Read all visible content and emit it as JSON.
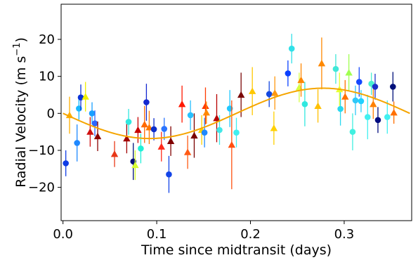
{
  "chart_data": {
    "type": "scatter",
    "title": "",
    "xlabel": "Time since midtransit (days)",
    "ylabel": "Radial Velocity (m s$^{-1}$)",
    "ylabel_main": "Radial Velocity (m s",
    "ylabel_sup": "−1",
    "ylabel_close": ")",
    "xlim": [
      -0.002,
      0.372
    ],
    "ylim": [
      -29,
      29.5
    ],
    "x_ticks": [
      0,
      0.1,
      0.2,
      0.3
    ],
    "x_tick_labels": [
      "0.0",
      "0.1",
      "0.2",
      "0.3"
    ],
    "y_ticks": [
      -20,
      -10,
      0,
      10,
      20
    ],
    "y_tick_labels": [
      "−20",
      "−10",
      "0",
      "10",
      "20"
    ],
    "grid": false,
    "legend": "none",
    "model_curve": {
      "type": "sinusoid",
      "amplitude": 6.8,
      "period": 0.37,
      "phase_zero_x": 0.0,
      "color": "#f5a500",
      "x_range": [
        0.0,
        0.37
      ]
    },
    "points": [
      {
        "x": 0.003,
        "y": -13.5,
        "err": 3.5,
        "marker": "circle",
        "color": "#0f3ce6"
      },
      {
        "x": 0.007,
        "y": -0.5,
        "err": 5.0,
        "marker": "triangle",
        "color": "#ffb000"
      },
      {
        "x": 0.015,
        "y": -8.0,
        "err": 5.0,
        "marker": "circle",
        "color": "#1e88ff"
      },
      {
        "x": 0.017,
        "y": 1.3,
        "err": 3.0,
        "marker": "circle",
        "color": "#18b8ff"
      },
      {
        "x": 0.019,
        "y": 4.3,
        "err": 3.5,
        "marker": "circle",
        "color": "#0a32d8"
      },
      {
        "x": 0.024,
        "y": 4.5,
        "err": 4.0,
        "marker": "triangle",
        "color": "#f0f000"
      },
      {
        "x": 0.029,
        "y": -5.0,
        "err": 4.0,
        "marker": "triangle",
        "color": "#d01010"
      },
      {
        "x": 0.031,
        "y": 0.0,
        "err": 3.0,
        "marker": "circle",
        "color": "#18a0ff"
      },
      {
        "x": 0.034,
        "y": -2.7,
        "err": 3.5,
        "marker": "circle",
        "color": "#2d66ff"
      },
      {
        "x": 0.037,
        "y": -6.2,
        "err": 4.0,
        "marker": "triangle",
        "color": "#8b0000"
      },
      {
        "x": 0.055,
        "y": -11.0,
        "err": 3.5,
        "marker": "triangle",
        "color": "#e83818"
      },
      {
        "x": 0.068,
        "y": -6.8,
        "err": 4.0,
        "marker": "triangle",
        "color": "#a00000"
      },
      {
        "x": 0.07,
        "y": -2.3,
        "err": 3.5,
        "marker": "circle",
        "color": "#30e8e0"
      },
      {
        "x": 0.075,
        "y": -13.0,
        "err": 5.0,
        "marker": "circle",
        "color": "#00107a"
      },
      {
        "x": 0.077,
        "y": -14.0,
        "err": 4.0,
        "marker": "triangle",
        "color": "#d8ff30"
      },
      {
        "x": 0.08,
        "y": -4.5,
        "err": 3.5,
        "marker": "triangle",
        "color": "#c80000"
      },
      {
        "x": 0.083,
        "y": -9.5,
        "err": 4.0,
        "marker": "circle",
        "color": "#20f0d8"
      },
      {
        "x": 0.087,
        "y": -3.0,
        "err": 5.0,
        "marker": "triangle",
        "color": "#ff6a00"
      },
      {
        "x": 0.089,
        "y": 3.0,
        "err": 5.0,
        "marker": "circle",
        "color": "#1428d0"
      },
      {
        "x": 0.092,
        "y": -3.8,
        "err": 4.5,
        "marker": "triangle",
        "color": "#ff7800"
      },
      {
        "x": 0.097,
        "y": -4.3,
        "err": 3.0,
        "marker": "circle",
        "color": "#0c2ecc"
      },
      {
        "x": 0.105,
        "y": -9.0,
        "err": 4.0,
        "marker": "triangle",
        "color": "#ff2a1a"
      },
      {
        "x": 0.108,
        "y": -4.2,
        "err": 3.0,
        "marker": "circle",
        "color": "#2a74ff"
      },
      {
        "x": 0.113,
        "y": -16.5,
        "err": 5.0,
        "marker": "circle",
        "color": "#1244e8"
      },
      {
        "x": 0.115,
        "y": -7.5,
        "err": 4.0,
        "marker": "triangle",
        "color": "#800000"
      },
      {
        "x": 0.127,
        "y": 2.5,
        "err": 5.0,
        "marker": "triangle",
        "color": "#ff1800"
      },
      {
        "x": 0.133,
        "y": -10.5,
        "err": 4.5,
        "marker": "triangle",
        "color": "#ff5a14"
      },
      {
        "x": 0.136,
        "y": -0.5,
        "err": 4.0,
        "marker": "circle",
        "color": "#28c0ff"
      },
      {
        "x": 0.14,
        "y": -6.0,
        "err": 6.0,
        "marker": "triangle",
        "color": "#7a0000"
      },
      {
        "x": 0.148,
        "y": -4.5,
        "err": 4.0,
        "marker": "triangle",
        "color": "#ffd000"
      },
      {
        "x": 0.151,
        "y": -5.2,
        "err": 4.0,
        "marker": "circle",
        "color": "#1e88ff"
      },
      {
        "x": 0.152,
        "y": 2.0,
        "err": 5.0,
        "marker": "triangle",
        "color": "#ff3a00"
      },
      {
        "x": 0.153,
        "y": 0.2,
        "err": 3.0,
        "marker": "triangle",
        "color": "#ff8800"
      },
      {
        "x": 0.164,
        "y": -1.3,
        "err": 6.5,
        "marker": "triangle",
        "color": "#b80000"
      },
      {
        "x": 0.167,
        "y": -4.5,
        "err": 4.0,
        "marker": "circle",
        "color": "#40e8e8"
      },
      {
        "x": 0.178,
        "y": 1.3,
        "err": 5.0,
        "marker": "circle",
        "color": "#20c8ff"
      },
      {
        "x": 0.18,
        "y": -8.5,
        "err": 12.0,
        "marker": "triangle",
        "color": "#ff5010"
      },
      {
        "x": 0.185,
        "y": -5.2,
        "err": 4.0,
        "marker": "circle",
        "color": "#40f0f0"
      },
      {
        "x": 0.19,
        "y": 5.0,
        "err": 6.0,
        "marker": "triangle",
        "color": "#7a0808"
      },
      {
        "x": 0.202,
        "y": 6.0,
        "err": 6.5,
        "marker": "triangle",
        "color": "#ffc800"
      },
      {
        "x": 0.22,
        "y": 5.2,
        "err": 3.5,
        "marker": "circle",
        "color": "#1448e0"
      },
      {
        "x": 0.226,
        "y": 5.5,
        "err": 4.5,
        "marker": "triangle",
        "color": "#ff9810"
      },
      {
        "x": 0.225,
        "y": -4.0,
        "err": 4.5,
        "marker": "triangle",
        "color": "#ffd000"
      },
      {
        "x": 0.24,
        "y": 10.8,
        "err": 3.5,
        "marker": "circle",
        "color": "#0a40ff"
      },
      {
        "x": 0.244,
        "y": 17.5,
        "err": 4.0,
        "marker": "circle",
        "color": "#30e0e8"
      },
      {
        "x": 0.252,
        "y": 7.0,
        "err": 4.0,
        "marker": "triangle",
        "color": "#d8ff40"
      },
      {
        "x": 0.254,
        "y": 9.0,
        "err": 4.5,
        "marker": "triangle",
        "color": "#ff8800"
      },
      {
        "x": 0.258,
        "y": 2.5,
        "err": 6.0,
        "marker": "circle",
        "color": "#30e8e0"
      },
      {
        "x": 0.272,
        "y": 2.0,
        "err": 4.5,
        "marker": "triangle",
        "color": "#ffc000"
      },
      {
        "x": 0.276,
        "y": 13.5,
        "err": 7.0,
        "marker": "triangle",
        "color": "#ff8800"
      },
      {
        "x": 0.291,
        "y": 12.0,
        "err": 4.0,
        "marker": "circle",
        "color": "#40e8d8"
      },
      {
        "x": 0.295,
        "y": 6.5,
        "err": 4.5,
        "marker": "triangle",
        "color": "#e8ff30"
      },
      {
        "x": 0.296,
        "y": 1.2,
        "err": 4.5,
        "marker": "circle",
        "color": "#28d8f0"
      },
      {
        "x": 0.301,
        "y": 4.5,
        "err": 4.5,
        "marker": "triangle",
        "color": "#ff7000"
      },
      {
        "x": 0.305,
        "y": 11.0,
        "err": 5.0,
        "marker": "triangle",
        "color": "#a0ff50"
      },
      {
        "x": 0.309,
        "y": -5.0,
        "err": 5.0,
        "marker": "circle",
        "color": "#40f0e0"
      },
      {
        "x": 0.312,
        "y": 3.5,
        "err": 4.0,
        "marker": "circle",
        "color": "#30c8f8"
      },
      {
        "x": 0.316,
        "y": 8.5,
        "err": 4.0,
        "marker": "circle",
        "color": "#1448ff"
      },
      {
        "x": 0.318,
        "y": 3.3,
        "err": 3.0,
        "marker": "circle",
        "color": "#20d0ff"
      },
      {
        "x": 0.325,
        "y": -1.0,
        "err": 6.0,
        "marker": "circle",
        "color": "#40f0f0"
      },
      {
        "x": 0.329,
        "y": 8.0,
        "err": 3.0,
        "marker": "circle",
        "color": "#48f0d0"
      },
      {
        "x": 0.331,
        "y": 2.5,
        "err": 4.0,
        "marker": "triangle",
        "color": "#ff8000"
      },
      {
        "x": 0.333,
        "y": 7.2,
        "err": 3.5,
        "marker": "circle",
        "color": "#1a30c8"
      },
      {
        "x": 0.336,
        "y": -1.8,
        "err": 3.5,
        "marker": "circle",
        "color": "#000c80"
      },
      {
        "x": 0.346,
        "y": -1.0,
        "err": 4.5,
        "marker": "circle",
        "color": "#40f0f0"
      },
      {
        "x": 0.352,
        "y": 7.2,
        "err": 4.0,
        "marker": "circle",
        "color": "#00107a"
      },
      {
        "x": 0.353,
        "y": 0.2,
        "err": 3.0,
        "marker": "triangle",
        "color": "#ff7000"
      }
    ]
  }
}
